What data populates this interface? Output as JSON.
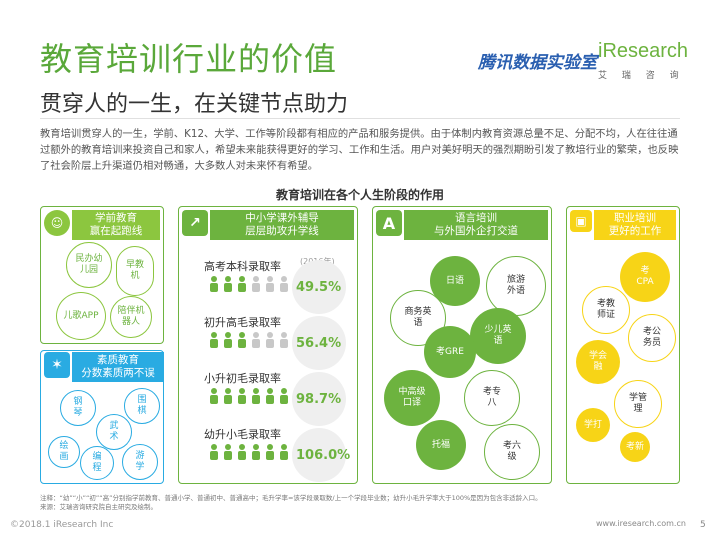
{
  "title": "教育培训行业的价值",
  "subtitle": "贯穿人的一生，在关键节点助力",
  "brand": {
    "cn": "腾讯数据实验室",
    "en": "iResearch",
    "sub": "艾 瑞 咨 询"
  },
  "intro": "教育培训贯穿人的一生，学前、K12、大学、工作等阶段都有相应的产品和服务提供。由于体制内教育资源总量不足、分配不均，人在往往通过额外的教育培训来投资自己和家人，希望未来能获得更好的学习、工作和生活。用户对美好明天的强烈期盼引发了教培行业的繁荣，也反映了社会阶层上升渠道仍相对畅通，大多数人对未来怀有希望。",
  "chart_title": "教育培训在各个人生阶段的作用",
  "colors": {
    "green": "#6db33f",
    "light_green": "#8cc63f",
    "blue": "#29abe2",
    "yellow": "#f7d417"
  },
  "panels": {
    "preschool": {
      "head": [
        "学前教育",
        "赢在起跑线"
      ],
      "items": [
        "民办幼儿园",
        "早教机",
        "儿歌APP",
        "陪伴机器人"
      ]
    },
    "quality": {
      "head": [
        "素质教育",
        "分数素质两不误"
      ],
      "items": [
        "钢琴",
        "围棋",
        "武术",
        "绘画",
        "编程",
        "游学"
      ]
    },
    "k12": {
      "head": [
        "中小学课外辅导",
        "层层助攻升学线"
      ],
      "note": "(2016年)",
      "rates": [
        {
          "label": "高考本科录取率",
          "value": "49.5%",
          "fraction": 0.495
        },
        {
          "label": "初升高毛录取率",
          "value": "56.4%",
          "fraction": 0.564
        },
        {
          "label": "小升初毛录取率",
          "value": "98.7%",
          "fraction": 0.987
        },
        {
          "label": "幼升小毛录取率",
          "value": "106.0%",
          "fraction": 1.06
        }
      ]
    },
    "language": {
      "head": [
        "语言培训",
        "与外国外企打交道"
      ],
      "icon": "A",
      "items": [
        "日语",
        "旅游外语",
        "商务英语",
        "少儿英语",
        "考GRE",
        "中高级口译",
        "考专八",
        "托福",
        "考六级"
      ]
    },
    "career": {
      "head": [
        "职业培训",
        "更好的工作"
      ],
      "items": [
        "考CPA",
        "考教师证",
        "考公务员",
        "学会融",
        "学管理",
        "学打",
        "考新"
      ]
    }
  },
  "footnote": "注释：“幼”“小”“初”“高”分别指学前教育、普通小学、普通初中、普通高中；毛升学率=该学段录取数/上一个学段毕业数；幼升小毛升学率大于100%是因为包含非适龄入口。\n来源：艾瑞咨询研究院自主研究及绘制。",
  "footer_left": "©2018.1 iResearch Inc",
  "footer_right": "www.iresearch.com.cn",
  "page_number": "5"
}
